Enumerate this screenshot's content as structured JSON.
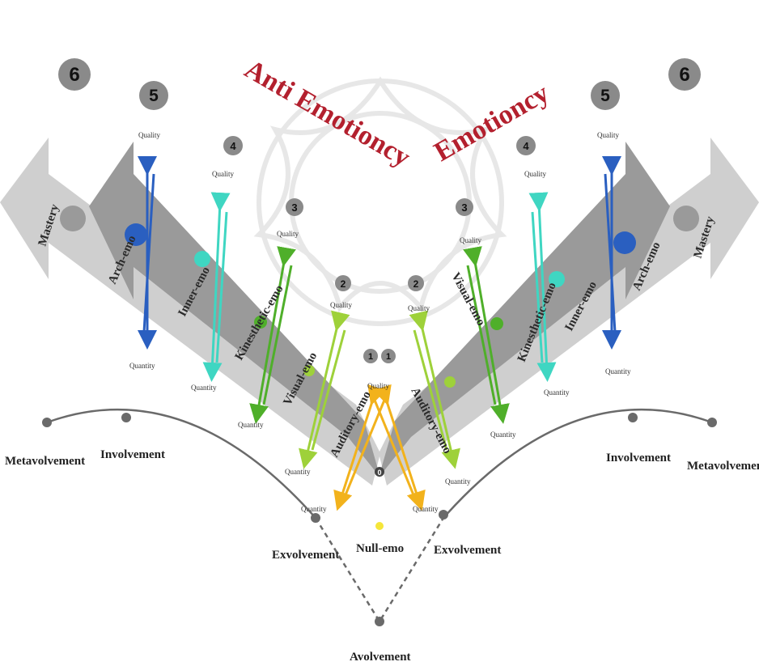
{
  "titles": {
    "left": "Anti Emotioncy",
    "right": "Emotioncy"
  },
  "stage_numbers": [
    "6",
    "5",
    "4",
    "3",
    "2",
    "1",
    "0"
  ],
  "bands": {
    "mastery": "Mastery",
    "arch": "Arch-emo",
    "inner": "Inner-emo",
    "kinesthetic": "Kinesthetic-emo",
    "visual": "Visual-emo",
    "auditory": "Auditory-emo",
    "null": "Null-emo"
  },
  "arrow_labels": {
    "quality": "Quality",
    "quantity": "Quantity"
  },
  "volvement": {
    "metavolvement": "Metavolvement",
    "involvement": "Involvement",
    "exvolvement": "Exvolvement",
    "avolvement": "Avolvement"
  },
  "colors": {
    "title": "#b3202e",
    "arch": "#2a5fc0",
    "inner": "#3fd6c2",
    "kinesthetic": "#4faf2a",
    "visual": "#9ed13a",
    "auditory": "#f2b21c",
    "null": "#f5e63a",
    "band_dark": "#8e8e8e",
    "band_light": "#c9c9c9"
  }
}
